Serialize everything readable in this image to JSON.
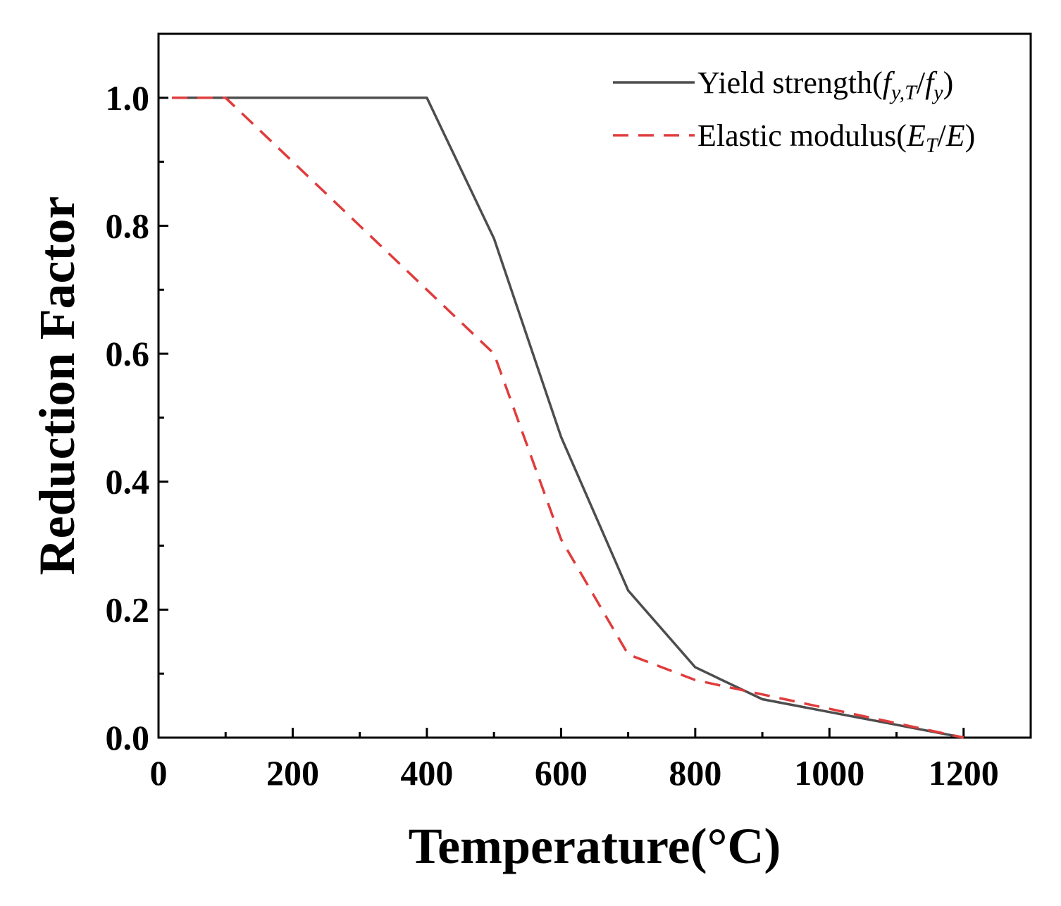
{
  "chart_data": {
    "type": "line",
    "xlabel": "Temperature(°C)",
    "ylabel": "Reduction Factor",
    "xlim": [
      0,
      1300
    ],
    "ylim": [
      0,
      1.1
    ],
    "xticks": [
      0,
      200,
      400,
      600,
      800,
      1000,
      1200
    ],
    "xtick_labels": [
      "0",
      "200",
      "400",
      "600",
      "800",
      "1000",
      "1200"
    ],
    "xminor": [
      100,
      300,
      500,
      700,
      900,
      1100
    ],
    "yticks": [
      0.0,
      0.2,
      0.4,
      0.6,
      0.8,
      1.0
    ],
    "ytick_labels": [
      "0.0",
      "0.2",
      "0.4",
      "0.6",
      "0.8",
      "1.0"
    ],
    "yminor": [
      0.1,
      0.3,
      0.5,
      0.7,
      0.9
    ],
    "grid": false,
    "legend_position": "top-right",
    "series": [
      {
        "name": "Yield strength",
        "legend_label": "Yield strength(",
        "legend_math": {
          "main": "f",
          "sub": "y,T",
          "sep": "/",
          "main2": "f",
          "sub2": "y",
          "close": ")"
        },
        "color": "#4d4d4d",
        "dash": "solid",
        "x": [
          20,
          100,
          200,
          300,
          400,
          500,
          600,
          700,
          800,
          900,
          1000,
          1100,
          1200
        ],
        "y": [
          1.0,
          1.0,
          1.0,
          1.0,
          1.0,
          0.78,
          0.47,
          0.23,
          0.11,
          0.06,
          0.04,
          0.02,
          0.0
        ]
      },
      {
        "name": "Elastic modulus",
        "legend_label": "Elastic modulus(",
        "legend_math": {
          "main": "E",
          "sub": "T",
          "sep": "/",
          "main2": "E",
          "sub2": "",
          "close": ")"
        },
        "color": "#e03c3c",
        "dash": "dashed",
        "x": [
          20,
          100,
          200,
          300,
          400,
          500,
          600,
          700,
          800,
          900,
          1000,
          1100,
          1200
        ],
        "y": [
          1.0,
          1.0,
          0.9,
          0.8,
          0.7,
          0.6,
          0.31,
          0.13,
          0.09,
          0.0675,
          0.045,
          0.0225,
          0.0
        ]
      }
    ]
  }
}
